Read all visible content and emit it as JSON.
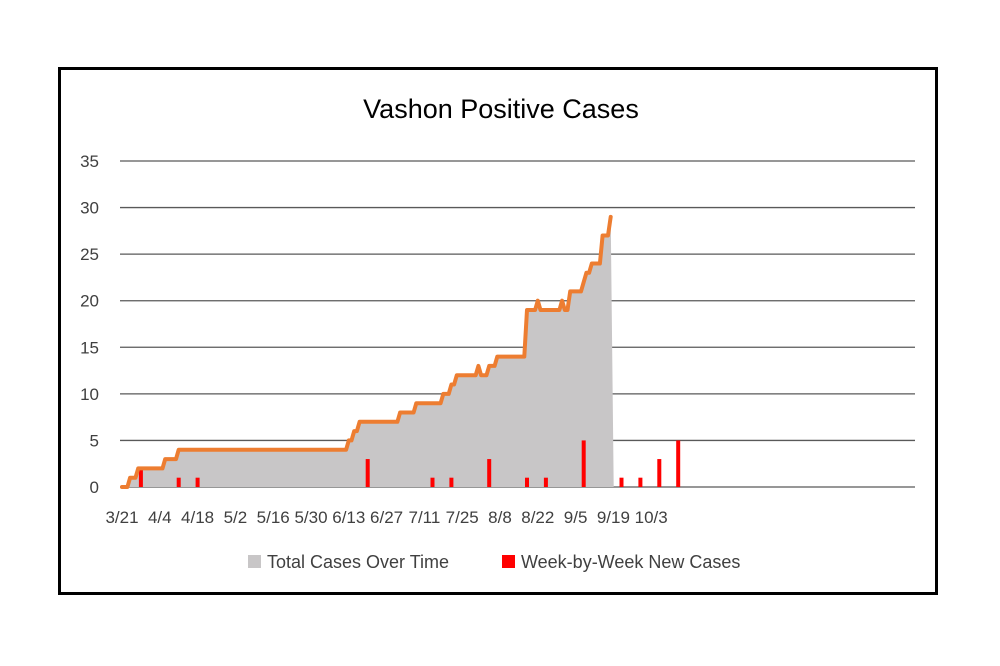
{
  "chart_data": {
    "type": "area",
    "title": "Vashon Positive Cases",
    "xlabel": "",
    "ylabel": "",
    "ylim": [
      0,
      35
    ],
    "yticks": [
      0,
      5,
      10,
      15,
      20,
      25,
      30,
      35
    ],
    "x_tick_labels": [
      "3/21",
      "4/4",
      "4/18",
      "5/2",
      "5/16",
      "5/30",
      "6/13",
      "6/27",
      "7/11",
      "7/25",
      "8/8",
      "8/22",
      "9/5",
      "9/19",
      "10/3"
    ],
    "grid": true,
    "legend_position": "bottom",
    "colors": {
      "area": "#c8c6c7",
      "line": "#ed7d31",
      "bars": "#ff0000",
      "grid": "#595959"
    },
    "series": [
      {
        "name": "Total Cases Over Time",
        "kind": "area",
        "points": [
          [
            "3/21",
            0
          ],
          [
            "3/23",
            0
          ],
          [
            "3/24",
            1
          ],
          [
            "3/26",
            1
          ],
          [
            "3/27",
            2
          ],
          [
            "4/2",
            2
          ],
          [
            "4/3",
            2
          ],
          [
            "4/5",
            2
          ],
          [
            "4/6",
            3
          ],
          [
            "4/10",
            3
          ],
          [
            "4/11",
            4
          ],
          [
            "4/18",
            4
          ],
          [
            "6/12",
            4
          ],
          [
            "6/13",
            5
          ],
          [
            "6/14",
            5
          ],
          [
            "6/15",
            6
          ],
          [
            "6/16",
            6
          ],
          [
            "6/17",
            7
          ],
          [
            "6/30",
            7
          ],
          [
            "7/1",
            7
          ],
          [
            "7/2",
            8
          ],
          [
            "7/7",
            8
          ],
          [
            "7/8",
            9
          ],
          [
            "7/16",
            9
          ],
          [
            "7/17",
            9
          ],
          [
            "7/18",
            10
          ],
          [
            "7/20",
            10
          ],
          [
            "7/21",
            11
          ],
          [
            "7/22",
            11
          ],
          [
            "7/23",
            12
          ],
          [
            "7/30",
            12
          ],
          [
            "7/31",
            13
          ],
          [
            "8/1",
            12
          ],
          [
            "8/3",
            12
          ],
          [
            "8/4",
            13
          ],
          [
            "8/6",
            13
          ],
          [
            "8/7",
            14
          ],
          [
            "8/17",
            14
          ],
          [
            "8/18",
            19
          ],
          [
            "8/21",
            19
          ],
          [
            "8/22",
            20
          ],
          [
            "8/23",
            19
          ],
          [
            "8/30",
            19
          ],
          [
            "8/31",
            20
          ],
          [
            "9/1",
            19
          ],
          [
            "9/2",
            19
          ],
          [
            "9/3",
            21
          ],
          [
            "9/7",
            21
          ],
          [
            "9/8",
            22
          ],
          [
            "9/9",
            23
          ],
          [
            "9/10",
            23
          ],
          [
            "9/11",
            24
          ],
          [
            "9/14",
            24
          ],
          [
            "9/15",
            27
          ],
          [
            "9/17",
            27
          ],
          [
            "9/18",
            29
          ]
        ]
      },
      {
        "name": "Week-by-Week New Cases",
        "kind": "bar",
        "points": [
          [
            "3/28",
            2
          ],
          [
            "4/11",
            1
          ],
          [
            "4/18",
            1
          ],
          [
            "6/20",
            3
          ],
          [
            "7/14",
            1
          ],
          [
            "7/21",
            1
          ],
          [
            "8/4",
            3
          ],
          [
            "8/18",
            1
          ],
          [
            "8/25",
            1
          ],
          [
            "9/8",
            5
          ],
          [
            "9/22",
            1
          ],
          [
            "9/29",
            1
          ],
          [
            "10/6",
            3
          ],
          [
            "10/13",
            5
          ]
        ]
      }
    ]
  }
}
